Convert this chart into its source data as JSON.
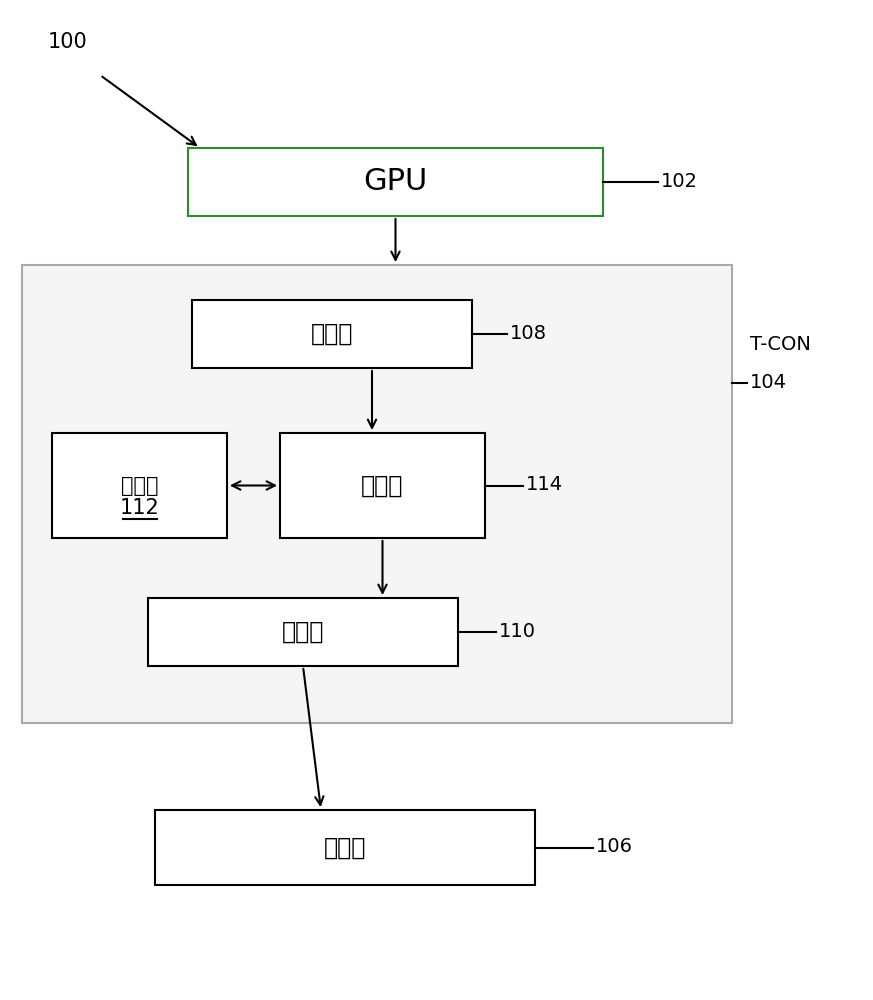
{
  "bg_color": "#ffffff",
  "label_100": "100",
  "label_102": "102",
  "label_104": "104",
  "label_106": "106",
  "label_108": "108",
  "label_110": "110",
  "label_112": "112",
  "label_114": "114",
  "label_tcon": "T-CON",
  "gpu_text": "GPU",
  "receiver_text": "接收器",
  "buffer_text": "缓冲器",
  "buffer_num": "112",
  "processor_text": "处理器",
  "emitter_text": "发射器",
  "display_text": "显示器",
  "box_border_color": "#000000",
  "box_bg_color": "#ffffff",
  "tcon_border_color": "#aaaaaa",
  "tcon_bg_color": "#f5f5f5",
  "arrow_color": "#000000",
  "font_size_main": 16,
  "font_size_label": 13
}
